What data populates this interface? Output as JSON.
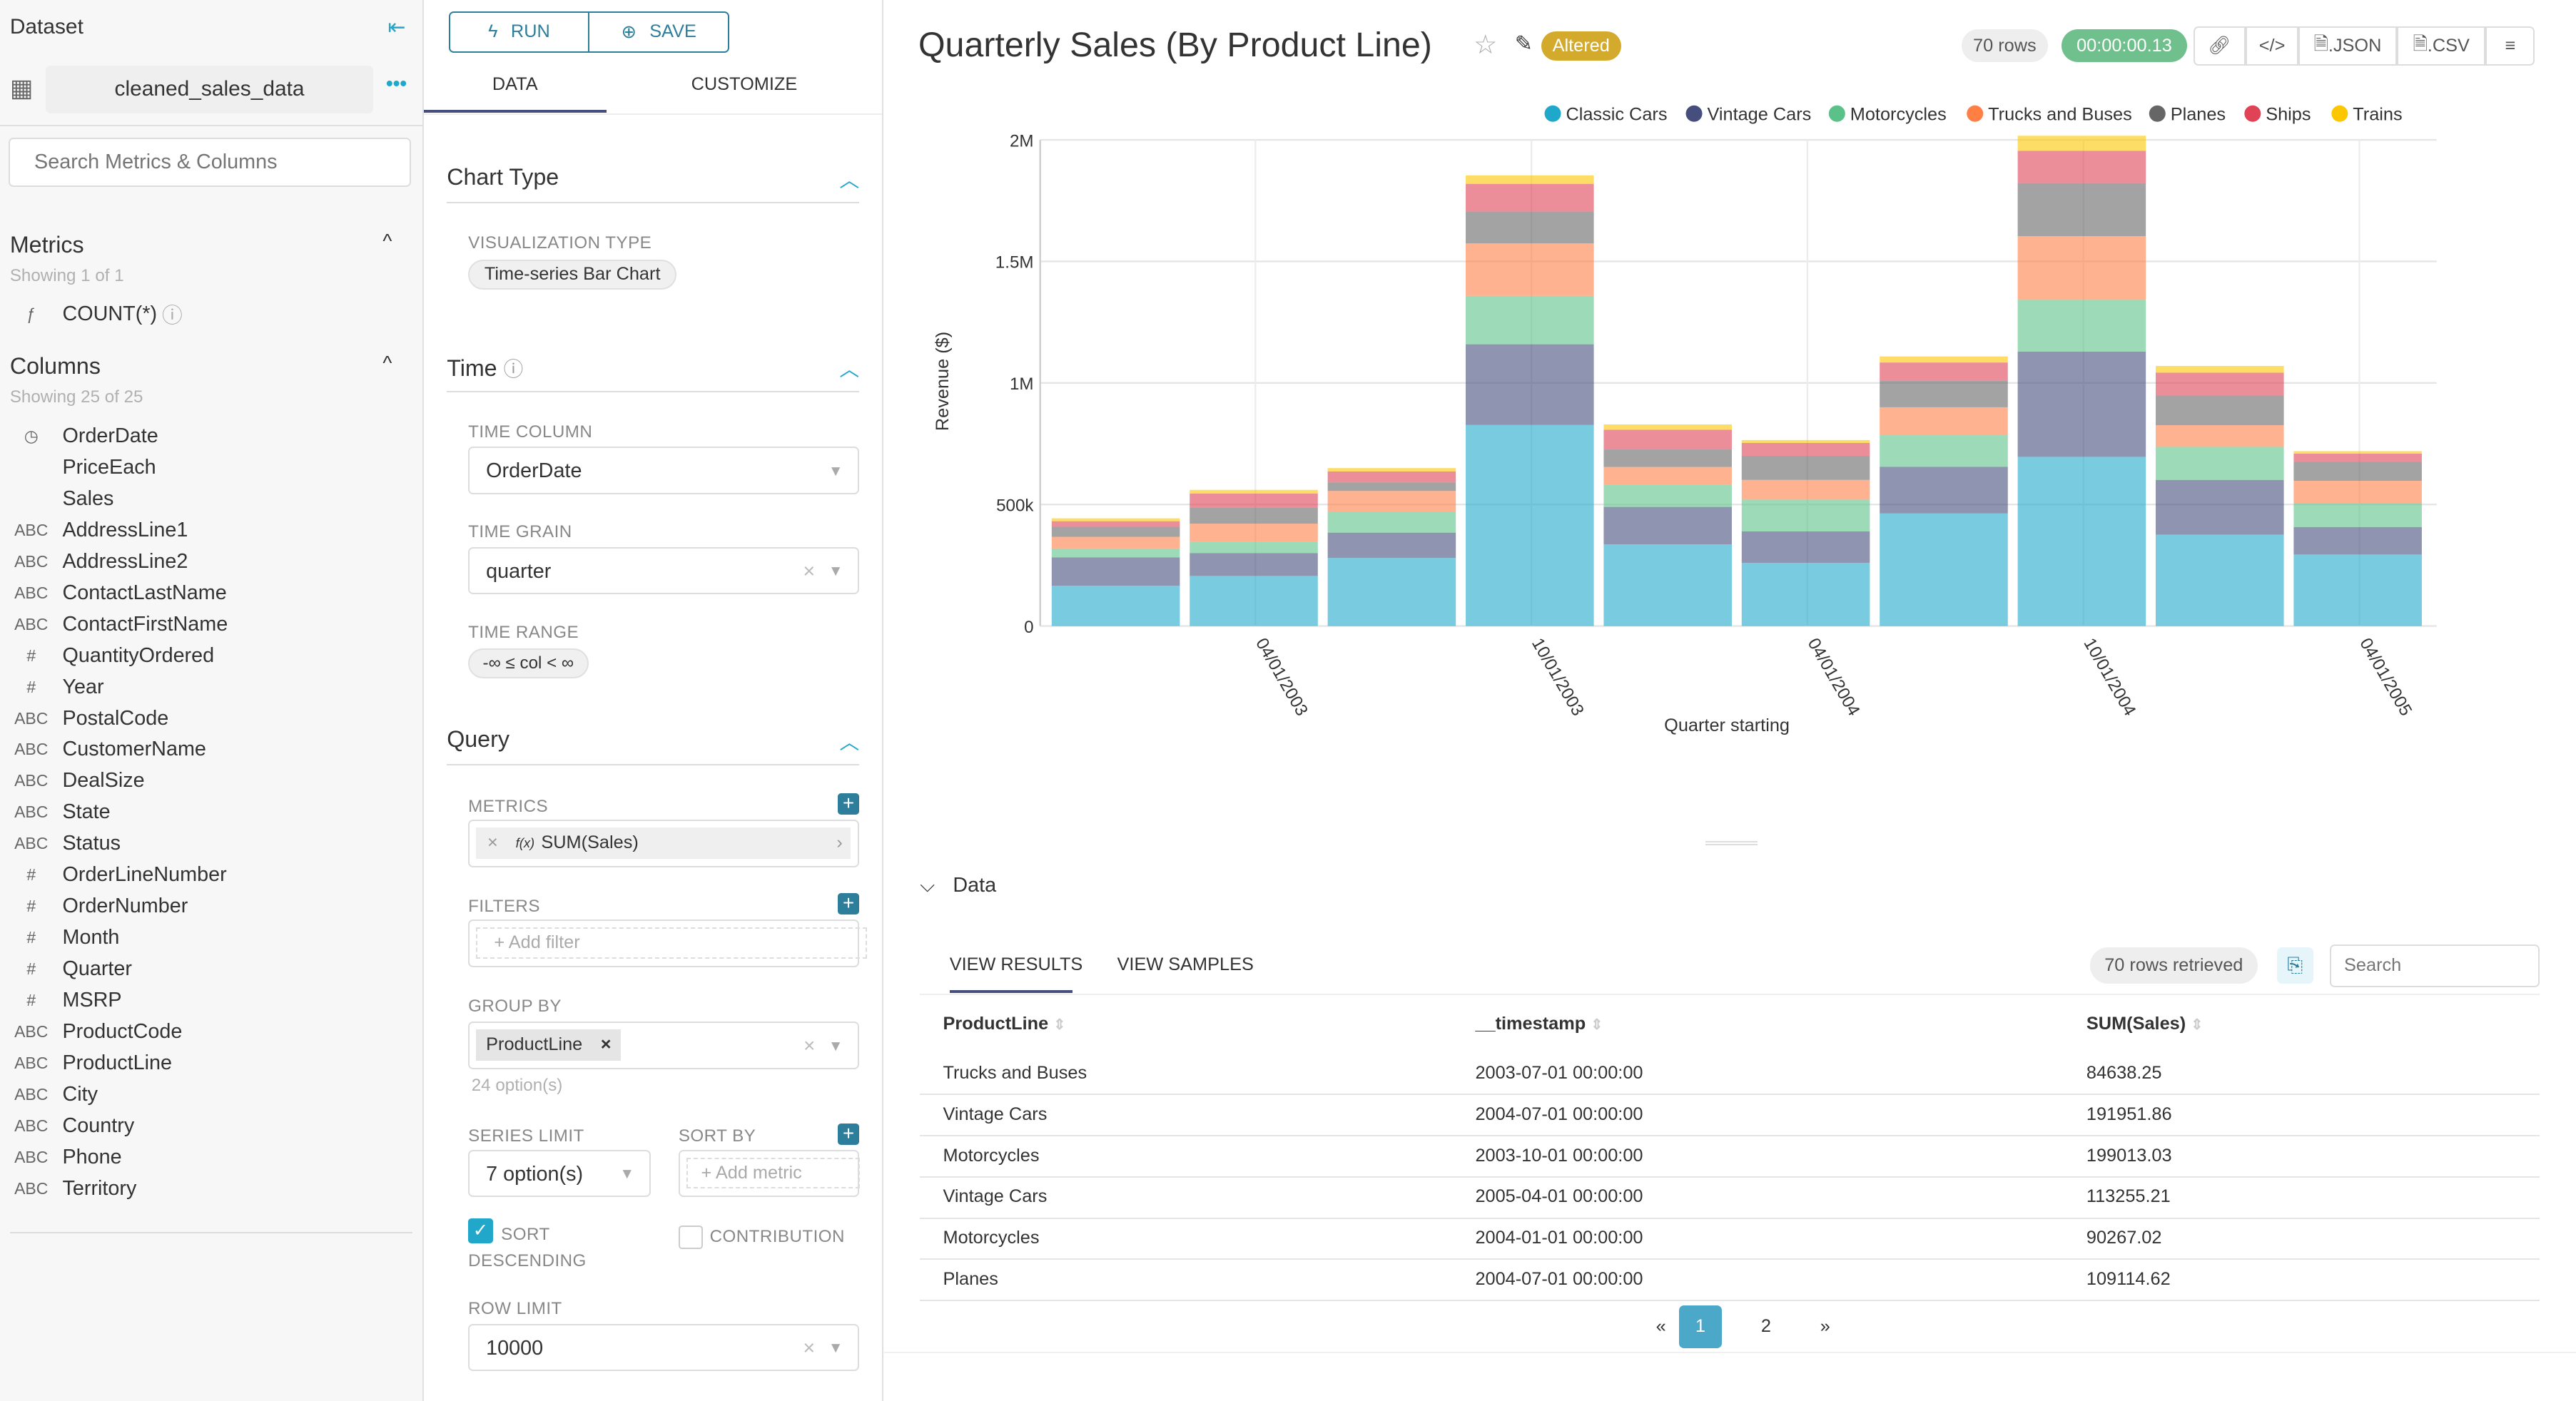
{
  "sidebar": {
    "title": "Dataset",
    "dataset_name": "cleaned_sales_data",
    "search_placeholder": "Search Metrics & Columns",
    "metrics_title": "Metrics",
    "metrics_count": "Showing 1 of 1",
    "metrics": [
      {
        "type": "ƒ",
        "name": "COUNT(*)"
      }
    ],
    "columns_title": "Columns",
    "columns_count": "Showing 25 of 25",
    "columns": [
      {
        "type": "◷",
        "name": "OrderDate"
      },
      {
        "type": "",
        "name": "PriceEach"
      },
      {
        "type": "",
        "name": "Sales"
      },
      {
        "type": "ABC",
        "name": "AddressLine1"
      },
      {
        "type": "ABC",
        "name": "AddressLine2"
      },
      {
        "type": "ABC",
        "name": "ContactLastName"
      },
      {
        "type": "ABC",
        "name": "ContactFirstName"
      },
      {
        "type": "#",
        "name": "QuantityOrdered"
      },
      {
        "type": "#",
        "name": "Year"
      },
      {
        "type": "ABC",
        "name": "PostalCode"
      },
      {
        "type": "ABC",
        "name": "CustomerName"
      },
      {
        "type": "ABC",
        "name": "DealSize"
      },
      {
        "type": "ABC",
        "name": "State"
      },
      {
        "type": "ABC",
        "name": "Status"
      },
      {
        "type": "#",
        "name": "OrderLineNumber"
      },
      {
        "type": "#",
        "name": "OrderNumber"
      },
      {
        "type": "#",
        "name": "Month"
      },
      {
        "type": "#",
        "name": "Quarter"
      },
      {
        "type": "#",
        "name": "MSRP"
      },
      {
        "type": "ABC",
        "name": "ProductCode"
      },
      {
        "type": "ABC",
        "name": "ProductLine"
      },
      {
        "type": "ABC",
        "name": "City"
      },
      {
        "type": "ABC",
        "name": "Country"
      },
      {
        "type": "ABC",
        "name": "Phone"
      },
      {
        "type": "ABC",
        "name": "Territory"
      }
    ]
  },
  "controls": {
    "run": "RUN",
    "save": "SAVE",
    "tabs": [
      "DATA",
      "CUSTOMIZE"
    ],
    "chart_type": {
      "title": "Chart Type",
      "viz_label": "VISUALIZATION TYPE",
      "viz_value": "Time-series Bar Chart"
    },
    "time": {
      "title": "Time",
      "col_label": "TIME COLUMN",
      "col_value": "OrderDate",
      "grain_label": "TIME GRAIN",
      "grain_value": "quarter",
      "range_label": "TIME RANGE",
      "range_value": "-∞ ≤ col < ∞"
    },
    "query": {
      "title": "Query",
      "metrics_label": "METRICS",
      "metric_value": "SUM(Sales)",
      "fx": "f(x)",
      "filters_label": "FILTERS",
      "add_filter": "Add filter",
      "groupby_label": "GROUP BY",
      "groupby_value": "ProductLine",
      "groupby_options": "24 option(s)",
      "series_limit_label": "SERIES LIMIT",
      "series_limit_value": "7 option(s)",
      "sortby_label": "SORT BY",
      "add_metric": "Add metric",
      "sort_desc": "SORT DESCENDING",
      "sort_desc_checked": true,
      "contribution": "CONTRIBUTION",
      "contribution_checked": false,
      "row_limit_label": "ROW LIMIT",
      "row_limit_value": "10000"
    }
  },
  "header": {
    "title": "Quarterly Sales (By Product Line)",
    "badge": "Altered",
    "rows": "70 rows",
    "duration": "00:00:00.13",
    "json": ".JSON",
    "csv": ".CSV",
    "badge_color": "#d4aa2c",
    "duration_color": "#6fc08c"
  },
  "chart_data": {
    "type": "bar",
    "stacked": true,
    "x": [
      "2003-01-01",
      "2003-04-01",
      "2003-07-01",
      "2003-10-01",
      "2004-01-01",
      "2004-04-01",
      "2004-07-01",
      "2004-10-01",
      "2005-01-01",
      "2005-04-01"
    ],
    "xtick_labels": [
      "04/01/2003",
      "10/01/2003",
      "04/01/2004",
      "10/01/2004",
      "04/01/2005"
    ],
    "ytick_labels": [
      "0",
      "500k",
      "1M",
      "1.5M",
      "2M"
    ],
    "ylim": [
      0,
      2000000
    ],
    "xlabel": "Quarter starting",
    "ylabel": "Revenue ($)",
    "legend": "top-right",
    "grid": true,
    "series": [
      {
        "name": "Classic Cars",
        "color": "#1fa8c9",
        "values": [
          166000,
          206000,
          280000,
          827000,
          336000,
          260000,
          463000,
          696000,
          376000,
          294000
        ]
      },
      {
        "name": "Vintage Cars",
        "color": "#454e7c",
        "values": [
          116000,
          94000,
          104000,
          332000,
          154000,
          129000,
          191952,
          433000,
          225000,
          113255
        ]
      },
      {
        "name": "Motorcycles",
        "color": "#5ac189",
        "values": [
          37000,
          47000,
          87000,
          199013,
          90267,
          131000,
          130000,
          213000,
          136000,
          99000
        ]
      },
      {
        "name": "Trucks and Buses",
        "color": "#ff7f44",
        "values": [
          48000,
          74000,
          84638,
          216000,
          74000,
          81000,
          115000,
          262000,
          89000,
          91000
        ]
      },
      {
        "name": "Planes",
        "color": "#666666",
        "values": [
          41000,
          67000,
          35000,
          131000,
          72000,
          99000,
          109115,
          218000,
          122000,
          78000
        ]
      },
      {
        "name": "Ships",
        "color": "#e04355",
        "values": [
          23000,
          57000,
          45000,
          114000,
          81000,
          53000,
          75000,
          133000,
          94000,
          34000
        ]
      },
      {
        "name": "Trains",
        "color": "#fcc700",
        "values": [
          12000,
          15000,
          14000,
          35000,
          22000,
          12000,
          25000,
          62000,
          28000,
          10000
        ]
      }
    ]
  },
  "data_panel": {
    "title": "Data",
    "tabs": [
      "VIEW RESULTS",
      "VIEW SAMPLES"
    ],
    "rows_retrieved": "70 rows retrieved",
    "search_placeholder": "Search",
    "columns": [
      "ProductLine",
      "__timestamp",
      "SUM(Sales)"
    ],
    "rows": [
      [
        "Trucks and Buses",
        "2003-07-01 00:00:00",
        "84638.25"
      ],
      [
        "Vintage Cars",
        "2004-07-01 00:00:00",
        "191951.86"
      ],
      [
        "Motorcycles",
        "2003-10-01 00:00:00",
        "199013.03"
      ],
      [
        "Vintage Cars",
        "2005-04-01 00:00:00",
        "113255.21"
      ],
      [
        "Motorcycles",
        "2004-01-01 00:00:00",
        "90267.02"
      ],
      [
        "Planes",
        "2004-07-01 00:00:00",
        "109114.62"
      ]
    ],
    "pages": [
      "«",
      "1",
      "2",
      "»"
    ],
    "current_page": "1"
  }
}
